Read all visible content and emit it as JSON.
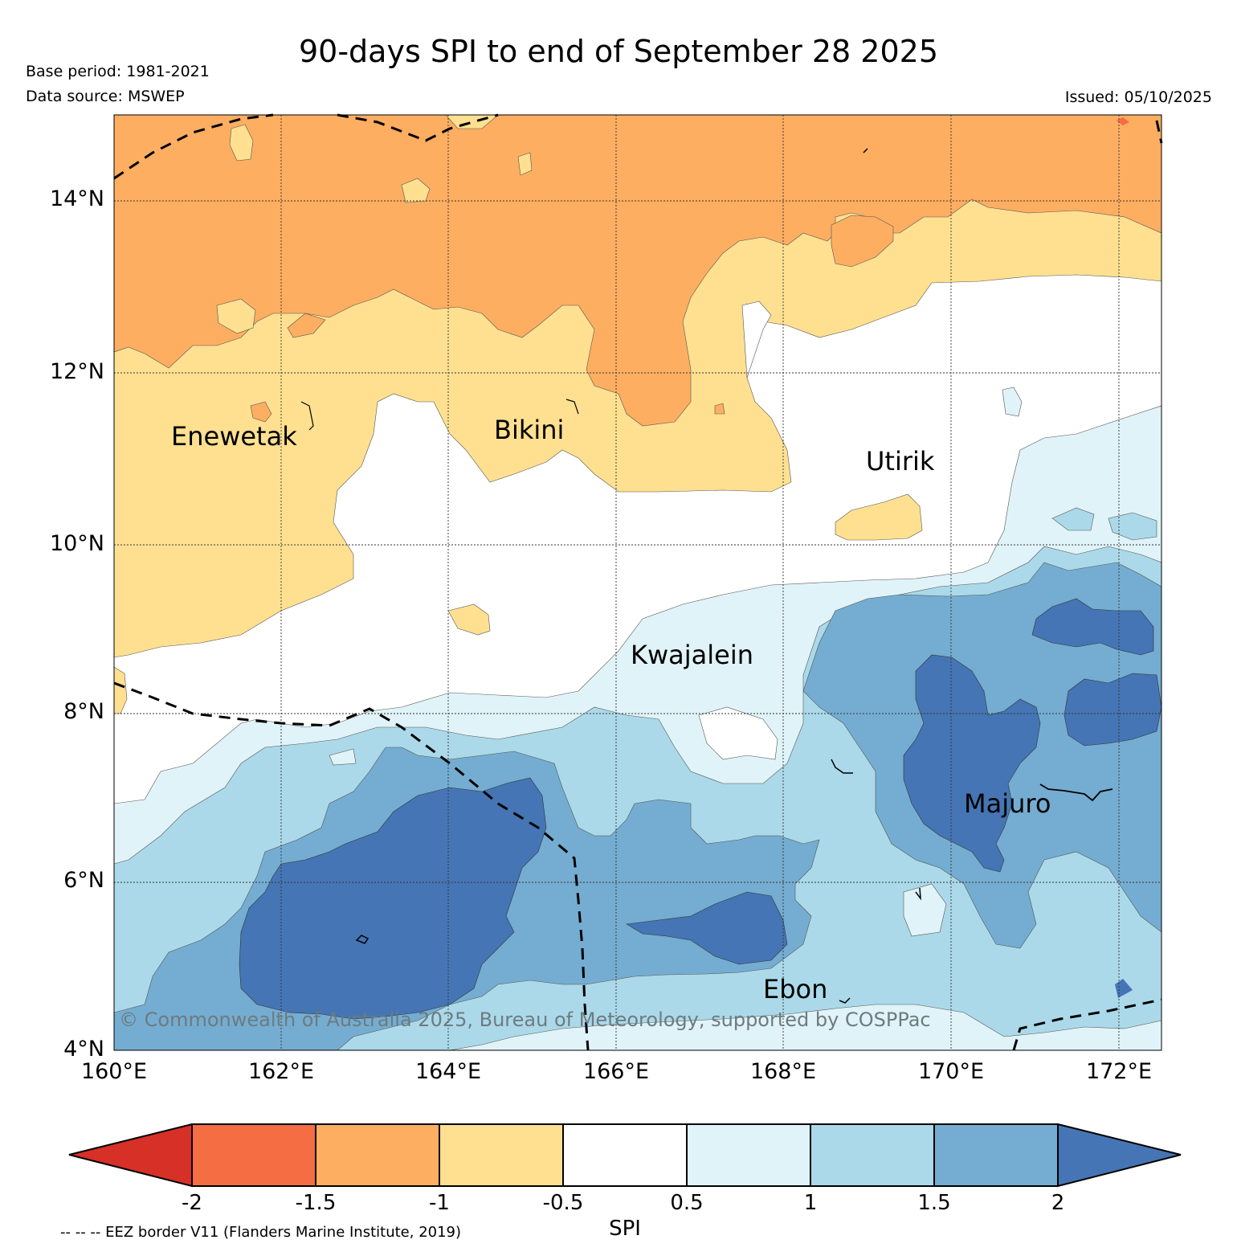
{
  "header": {
    "title": "90-days SPI to end of September 28 2025",
    "base_period": "Base period: 1981-2021",
    "data_source": "Data source: MSWEP",
    "issued": "Issued: 05/10/2025"
  },
  "map": {
    "lat_labels": [
      "14°N",
      "12°N",
      "10°N",
      "8°N",
      "6°N",
      "4°N"
    ],
    "lon_labels": [
      "160°E",
      "162°E",
      "164°E",
      "166°E",
      "168°E",
      "170°E",
      "172°E"
    ],
    "places": [
      "Enewetak",
      "Bikini",
      "Utirik",
      "Kwajalein",
      "Majuro",
      "Ebon"
    ],
    "copyright": "© Commonwealth of Australia 2025, Bureau of Meteorology, supported by COSPPac"
  },
  "colorbar": {
    "title": "SPI",
    "labels": [
      "-2",
      "-1.5",
      "-1",
      "-0.5",
      "0.5",
      "1",
      "1.5",
      "2"
    ],
    "colors": [
      "#d73027",
      "#f46d43",
      "#fdae61",
      "#fee090",
      "#ffffff",
      "#e0f3f8",
      "#abd9e9",
      "#74add1",
      "#4575b4"
    ]
  },
  "footer": {
    "eez_note": "-- -- -- EEZ border V11 (Flanders Marine Institute, 2019)"
  }
}
